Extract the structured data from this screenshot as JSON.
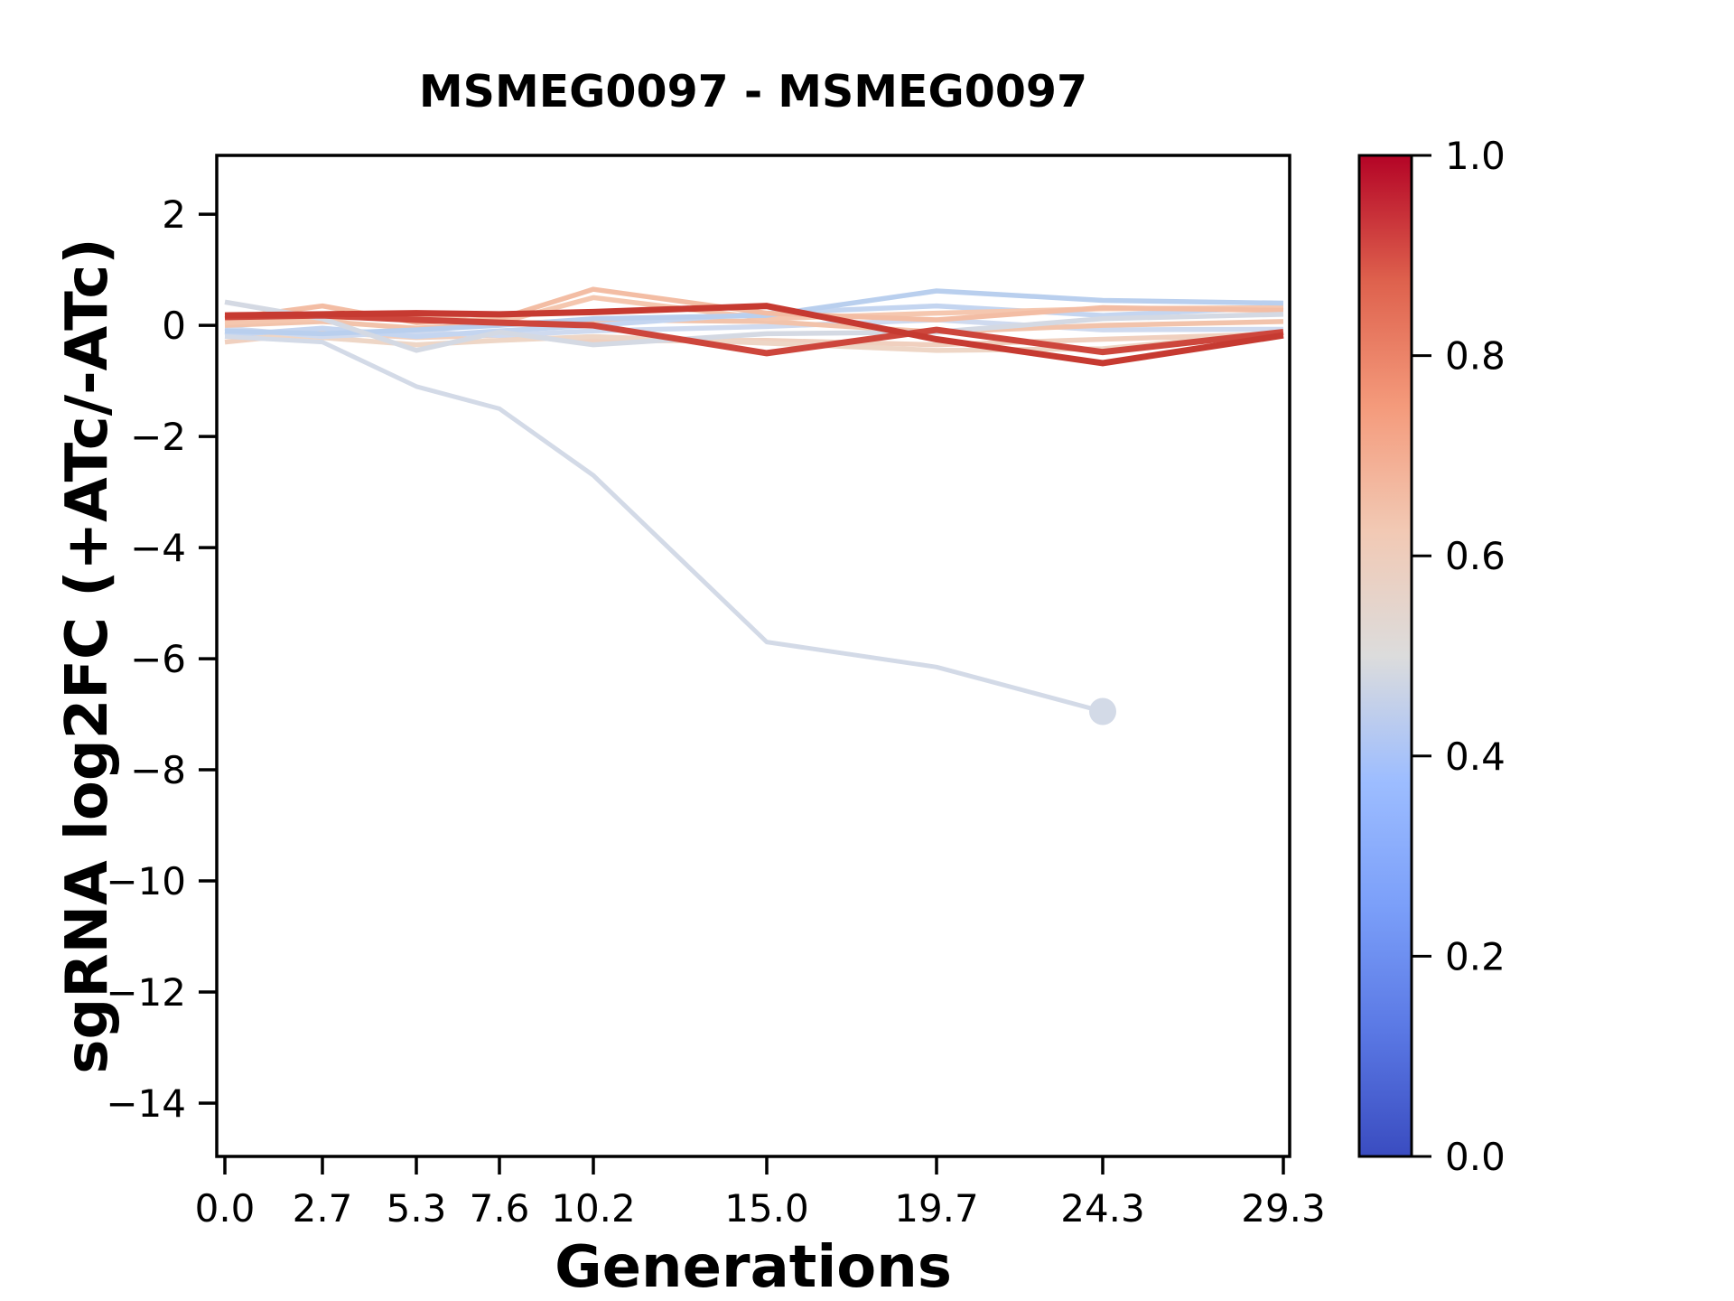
{
  "chart_data": {
    "type": "line",
    "title": "MSMEG0097 - MSMEG0097",
    "xlabel": "Generations",
    "ylabel": "sgRNA log2FC (+ATc/-ATc)",
    "x": [
      0.0,
      2.7,
      5.3,
      7.6,
      10.2,
      15.0,
      19.7,
      24.3,
      29.3
    ],
    "xtick_labels": [
      "0.0",
      "2.7",
      "5.3",
      "7.6",
      "10.2",
      "15.0",
      "19.7",
      "24.3",
      "29.3"
    ],
    "ytick_values": [
      2,
      0,
      -2,
      -4,
      -6,
      -8,
      -10,
      -12,
      -14
    ],
    "ytick_labels": [
      "2",
      "0",
      "−2",
      "−4",
      "−6",
      "−8",
      "−10",
      "−12",
      "−14"
    ],
    "xlim": [
      -0.225,
      29.475
    ],
    "ylim": [
      -14.96,
      3.06
    ],
    "grid": false,
    "legend": "none (colorbar only)",
    "series": [
      {
        "name": "sgrna-peach-low",
        "color": "#f0d0bf",
        "width": 5.5,
        "end_marker": false,
        "values": [
          -0.3,
          -0.12,
          -0.22,
          -0.18,
          -0.28,
          -0.27,
          -0.35,
          -0.25,
          -0.15
        ]
      },
      {
        "name": "sgrna-peach-bottom",
        "color": "#eed6c6",
        "width": 5.5,
        "end_marker": false,
        "values": [
          -0.12,
          -0.22,
          -0.35,
          -0.27,
          -0.2,
          -0.32,
          -0.45,
          -0.42,
          -0.12
        ]
      },
      {
        "name": "sgrna-blue-flat",
        "color": "#cfdaef",
        "width": 5.5,
        "end_marker": false,
        "values": [
          -0.05,
          -0.2,
          -0.12,
          -0.18,
          -0.1,
          -0.02,
          0.1,
          -0.08,
          -0.07
        ]
      },
      {
        "name": "sgrna-peach-mid",
        "color": "#f2c3ab",
        "width": 5.5,
        "end_marker": false,
        "values": [
          0.0,
          0.07,
          -0.05,
          0.02,
          0.1,
          0.07,
          -0.12,
          0.0,
          0.07
        ]
      },
      {
        "name": "sgrna-blue-mid",
        "color": "#c4d5f0",
        "width": 5.5,
        "end_marker": false,
        "values": [
          -0.18,
          -0.05,
          -0.2,
          -0.1,
          0.0,
          0.22,
          0.35,
          0.18,
          0.33
        ]
      },
      {
        "name": "sgrna-peach-spike2",
        "color": "#f5c7af",
        "width": 5.5,
        "end_marker": false,
        "values": [
          0.05,
          0.12,
          0.18,
          0.05,
          0.5,
          0.12,
          0.22,
          0.3,
          0.32
        ]
      },
      {
        "name": "sgrna-blue-peak",
        "color": "#b9cfee",
        "width": 5.5,
        "end_marker": false,
        "values": [
          -0.1,
          -0.15,
          -0.08,
          0.0,
          0.12,
          0.18,
          0.62,
          0.45,
          0.4
        ]
      },
      {
        "name": "sgrna-peach-spike1",
        "color": "#f3bda4",
        "width": 5.5,
        "end_marker": false,
        "values": [
          0.12,
          0.35,
          0.05,
          0.12,
          0.65,
          0.22,
          0.1,
          0.32,
          0.27
        ]
      },
      {
        "name": "sgrna-gray-dip",
        "color": "#d4d9e3",
        "width": 5.5,
        "end_marker": false,
        "values": [
          0.42,
          0.12,
          -0.45,
          -0.12,
          -0.35,
          -0.15,
          -0.12,
          0.12,
          0.2
        ]
      },
      {
        "name": "sgrna-depleted",
        "color": "#d3dae7",
        "width": 5.0,
        "end_marker": true,
        "values": [
          -0.2,
          -0.3,
          -1.1,
          -1.5,
          -2.7,
          -5.7,
          -6.15,
          -6.95,
          null
        ]
      },
      {
        "name": "sgrna-red-trough",
        "color": "#cd463c",
        "width": 7.0,
        "end_marker": false,
        "values": [
          0.15,
          0.18,
          0.1,
          0.05,
          0.0,
          -0.5,
          -0.08,
          -0.48,
          -0.12
        ]
      },
      {
        "name": "sgrna-red-peak",
        "color": "#c63a31",
        "width": 7.0,
        "end_marker": false,
        "values": [
          0.18,
          0.2,
          0.22,
          0.2,
          0.24,
          0.35,
          -0.25,
          -0.68,
          -0.18
        ]
      }
    ],
    "marker_radius": 15,
    "colorbar": {
      "tick_labels": [
        "0.0",
        "0.2",
        "0.4",
        "0.6",
        "0.8",
        "1.0"
      ],
      "tick_values": [
        0.0,
        0.2,
        0.4,
        0.6,
        0.8,
        1.0
      ],
      "gradient": [
        {
          "offset": 0.0,
          "color": "#3a4cc0"
        },
        {
          "offset": 0.125,
          "color": "#5a78e4"
        },
        {
          "offset": 0.25,
          "color": "#7b9ff9"
        },
        {
          "offset": 0.375,
          "color": "#9dbdff"
        },
        {
          "offset": 0.5,
          "color": "#dcdcdc"
        },
        {
          "offset": 0.625,
          "color": "#f2c9b4"
        },
        {
          "offset": 0.75,
          "color": "#f49a7b"
        },
        {
          "offset": 0.875,
          "color": "#de614d"
        },
        {
          "offset": 1.0,
          "color": "#b40426"
        }
      ]
    },
    "colors": {
      "spine": "#000000",
      "background": "#ffffff"
    }
  }
}
